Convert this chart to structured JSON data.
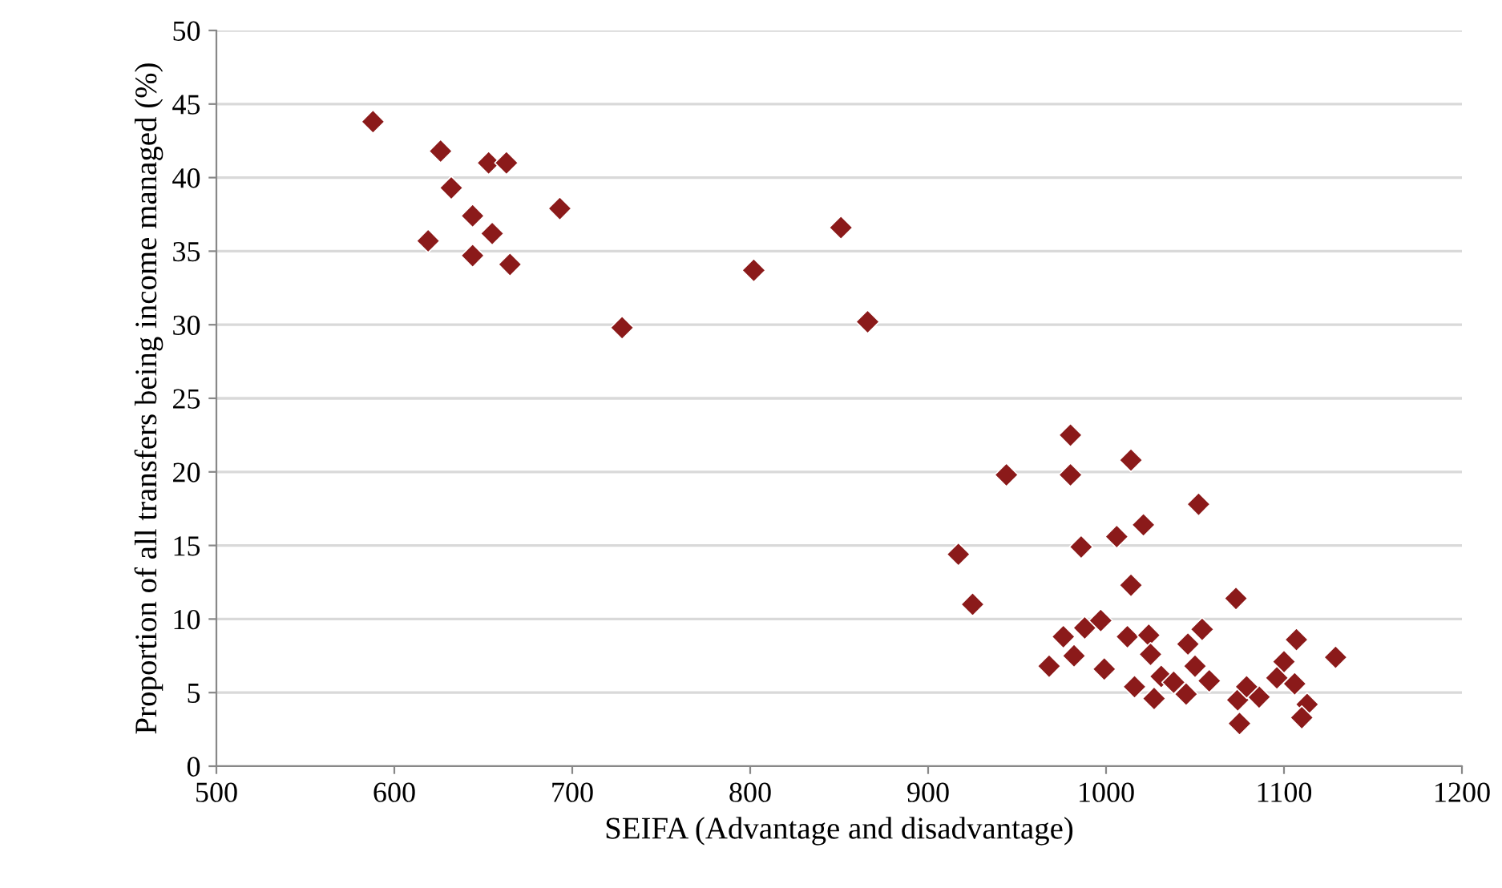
{
  "chart_data": {
    "type": "scatter",
    "xlabel": "SEIFA (Advantage and disadvantage)",
    "ylabel": "Proportion of all transfers being income managed (%)",
    "x": [
      588,
      626,
      653,
      663,
      632,
      644,
      619,
      655,
      644,
      665,
      693,
      728,
      802,
      851,
      866,
      917,
      925,
      944,
      980,
      980,
      1014,
      1052,
      1006,
      1021,
      986,
      1014,
      1073,
      976,
      988,
      997,
      968,
      982,
      999,
      1012,
      1024,
      1025,
      1016,
      1027,
      1031,
      1038,
      1045,
      1046,
      1054,
      1050,
      1058,
      1074,
      1075,
      1086,
      1079,
      1100,
      1096,
      1106,
      1107,
      1113,
      1110,
      1129
    ],
    "values": [
      43.8,
      41.8,
      41.0,
      41.0,
      39.3,
      37.4,
      35.7,
      36.2,
      34.7,
      34.1,
      37.9,
      29.8,
      33.7,
      36.6,
      30.2,
      14.4,
      11.0,
      19.8,
      22.5,
      19.8,
      20.8,
      17.8,
      15.6,
      16.4,
      14.9,
      12.3,
      11.4,
      8.8,
      9.4,
      9.9,
      6.8,
      7.5,
      6.6,
      8.8,
      8.9,
      7.6,
      5.4,
      4.6,
      6.1,
      5.7,
      4.9,
      8.3,
      9.3,
      6.8,
      5.8,
      4.5,
      2.9,
      4.7,
      5.4,
      7.1,
      6.0,
      5.6,
      8.6,
      4.2,
      3.3,
      7.4
    ],
    "color": "#8b1a1a",
    "marker": "diamond",
    "grid": "y",
    "xlim": [
      500,
      1200
    ],
    "xticks": [
      500,
      600,
      700,
      800,
      900,
      1000,
      1100,
      1200
    ],
    "ylim": [
      0,
      50
    ],
    "yticks": [
      0,
      5,
      10,
      15,
      20,
      25,
      30,
      35,
      40,
      45,
      50
    ]
  }
}
